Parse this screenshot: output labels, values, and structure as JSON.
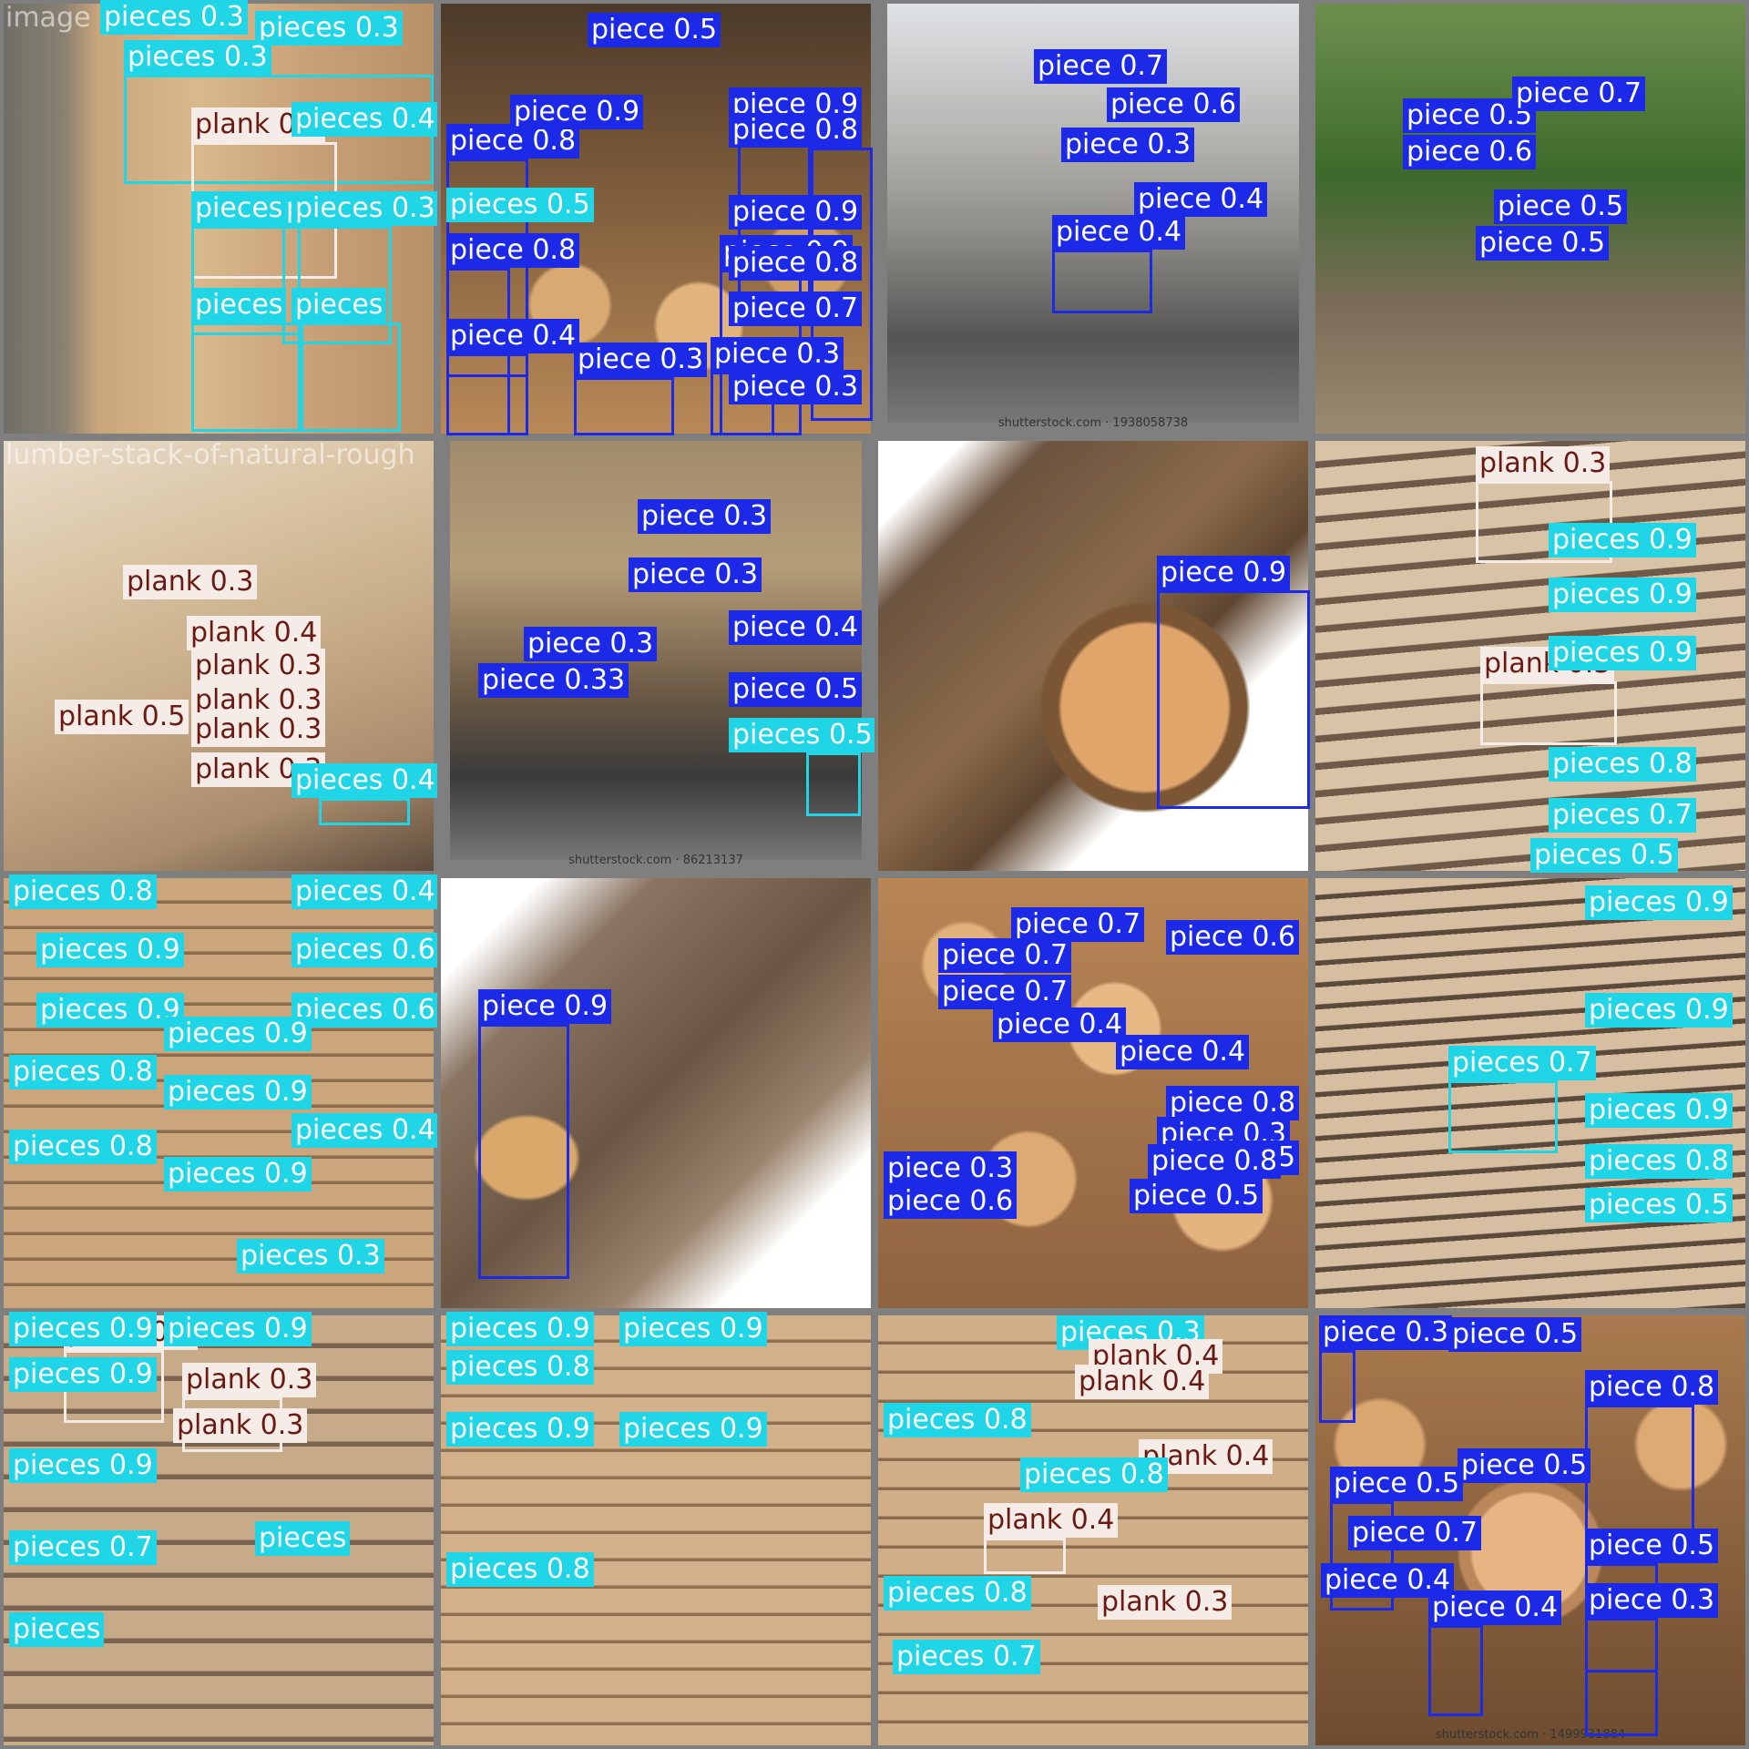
{
  "colors": {
    "pieces": "#1fd5e6",
    "piece": "#1c2ae8",
    "plank": "#f5ece8",
    "plank_text": "#6b1a12",
    "grid_bg": "#7f7f7f"
  },
  "tiles": [
    {
      "filename": "image",
      "credit": "",
      "photo": "lumber-wall",
      "detections": [
        {
          "label": "pieces 0.3",
          "cls": "pieces"
        },
        {
          "label": "pieces 0.3",
          "cls": "pieces"
        },
        {
          "label": "pieces 0.3",
          "cls": "pieces"
        },
        {
          "label": "plank 0.4",
          "cls": "plank"
        },
        {
          "label": "pieces 0.4",
          "cls": "pieces"
        },
        {
          "label": "pieces",
          "cls": "pieces"
        },
        {
          "label": "pieces",
          "cls": "pieces"
        },
        {
          "label": "pieces 0.3",
          "cls": "pieces"
        },
        {
          "label": "pieces",
          "cls": "pieces"
        },
        {
          "label": "pieces",
          "cls": "pieces"
        }
      ]
    },
    {
      "filename": "",
      "credit": "",
      "photo": "log-pile",
      "detections": [
        {
          "label": "piece 0.5",
          "cls": "piece"
        },
        {
          "label": "piece 0.8",
          "cls": "piece"
        },
        {
          "label": "piece 0.9",
          "cls": "piece"
        },
        {
          "label": "piece 0.8",
          "cls": "piece"
        },
        {
          "label": "piece 0.9",
          "cls": "piece"
        },
        {
          "label": "piece 0.8",
          "cls": "piece"
        },
        {
          "label": "piece 0.9",
          "cls": "piece"
        },
        {
          "label": "piece 0.8",
          "cls": "piece"
        },
        {
          "label": "piece 0.9",
          "cls": "piece"
        },
        {
          "label": "piece 0.4",
          "cls": "piece"
        },
        {
          "label": "piece 0.3",
          "cls": "piece"
        },
        {
          "label": "piece 0.3",
          "cls": "piece"
        },
        {
          "label": "piece 0.7",
          "cls": "piece"
        },
        {
          "label": "piece 0.3",
          "cls": "piece"
        },
        {
          "label": "pieces 0.5",
          "cls": "pieces"
        }
      ]
    },
    {
      "filename": "",
      "credit": "shutterstock.com · 1938058738",
      "photo": "truck-road",
      "detections": [
        {
          "label": "piece 0.7",
          "cls": "piece"
        },
        {
          "label": "piece 0.6",
          "cls": "piece"
        },
        {
          "label": "piece 0.3",
          "cls": "piece"
        },
        {
          "label": "piece 0.4",
          "cls": "piece"
        },
        {
          "label": "piece 0.4",
          "cls": "piece"
        }
      ]
    },
    {
      "filename": "",
      "credit": "",
      "photo": "truck-dirt",
      "detections": [
        {
          "label": "piece 0.5",
          "cls": "piece"
        },
        {
          "label": "piece 0.6",
          "cls": "piece"
        },
        {
          "label": "piece 0.5",
          "cls": "piece"
        },
        {
          "label": "piece 0.5",
          "cls": "piece"
        },
        {
          "label": "piece 0.7",
          "cls": "piece"
        }
      ]
    },
    {
      "filename": "lumber-stack-of-natural-rough",
      "credit": "",
      "photo": "stack-planks",
      "detections": [
        {
          "label": "plank 0.3",
          "cls": "plank"
        },
        {
          "label": "plank 0.4",
          "cls": "plank"
        },
        {
          "label": "plank 0.3",
          "cls": "plank"
        },
        {
          "label": "plank 0.5",
          "cls": "plank"
        },
        {
          "label": "plank 0.3",
          "cls": "plank"
        },
        {
          "label": "plank 0.3",
          "cls": "plank"
        },
        {
          "label": "plank 0.3",
          "cls": "plank"
        },
        {
          "label": "pieces 0.4",
          "cls": "pieces"
        }
      ]
    },
    {
      "filename": "",
      "credit": "shutterstock.com · 86213137",
      "photo": "logging-truck",
      "detections": [
        {
          "label": "piece 0.3",
          "cls": "piece"
        },
        {
          "label": "piece 0.3",
          "cls": "piece"
        },
        {
          "label": "piece 0.3",
          "cls": "piece"
        },
        {
          "label": "piece 0.33",
          "cls": "piece"
        },
        {
          "label": "piece 0.4",
          "cls": "piece"
        },
        {
          "label": "piece 0.5",
          "cls": "piece"
        },
        {
          "label": "pieces 0.5",
          "cls": "pieces"
        }
      ]
    },
    {
      "filename": "",
      "credit": "",
      "photo": "single-log",
      "detections": [
        {
          "label": "piece 0.9",
          "cls": "piece"
        }
      ]
    },
    {
      "filename": "",
      "credit": "",
      "photo": "boards-side",
      "detections": [
        {
          "label": "plank 0.3",
          "cls": "plank"
        },
        {
          "label": "plank 0.3",
          "cls": "plank"
        },
        {
          "label": "pieces 0.9",
          "cls": "pieces"
        },
        {
          "label": "pieces 0.9",
          "cls": "pieces"
        },
        {
          "label": "pieces 0.9",
          "cls": "pieces"
        },
        {
          "label": "pieces 0.8",
          "cls": "pieces"
        },
        {
          "label": "pieces 0.7",
          "cls": "pieces"
        },
        {
          "label": "pieces 0.5",
          "cls": "pieces"
        }
      ]
    },
    {
      "filename": "",
      "credit": "",
      "photo": "plank-wall",
      "detections": [
        {
          "label": "pieces 0.8",
          "cls": "pieces"
        },
        {
          "label": "pieces 0.4",
          "cls": "pieces"
        },
        {
          "label": "pieces 0.9",
          "cls": "pieces"
        },
        {
          "label": "pieces 0.6",
          "cls": "pieces"
        },
        {
          "label": "pieces 0.9",
          "cls": "pieces"
        },
        {
          "label": "pieces 0.6",
          "cls": "pieces"
        },
        {
          "label": "pieces 0.9",
          "cls": "pieces"
        },
        {
          "label": "pieces 0.8",
          "cls": "pieces"
        },
        {
          "label": "pieces 0.9",
          "cls": "pieces"
        },
        {
          "label": "pieces 0.4",
          "cls": "pieces"
        },
        {
          "label": "pieces 0.8",
          "cls": "pieces"
        },
        {
          "label": "pieces 0.9",
          "cls": "pieces"
        },
        {
          "label": "pieces 0.3",
          "cls": "pieces"
        }
      ]
    },
    {
      "filename": "",
      "credit": "",
      "photo": "bark-log",
      "detections": [
        {
          "label": "piece 0.9",
          "cls": "piece"
        }
      ]
    },
    {
      "filename": "",
      "credit": "",
      "photo": "log-ends",
      "detections": [
        {
          "label": "piece 0.7",
          "cls": "piece"
        },
        {
          "label": "piece 0.7",
          "cls": "piece"
        },
        {
          "label": "piece 0.7",
          "cls": "piece"
        },
        {
          "label": "piece 0.6",
          "cls": "piece"
        },
        {
          "label": "piece 0.4",
          "cls": "piece"
        },
        {
          "label": "piece 0.4",
          "cls": "piece"
        },
        {
          "label": "piece 0.8",
          "cls": "piece"
        },
        {
          "label": "piece 0.3",
          "cls": "piece"
        },
        {
          "label": "piece 0.5",
          "cls": "piece"
        },
        {
          "label": "piece 0.3",
          "cls": "piece"
        },
        {
          "label": "piece 0.6",
          "cls": "piece"
        },
        {
          "label": "piece 0.5",
          "cls": "piece"
        },
        {
          "label": "piece 0.8",
          "cls": "piece"
        }
      ]
    },
    {
      "filename": "",
      "credit": "",
      "photo": "boards-perspective",
      "detections": [
        {
          "label": "pieces 0.9",
          "cls": "pieces"
        },
        {
          "label": "pieces 0.9",
          "cls": "pieces"
        },
        {
          "label": "pieces 0.7",
          "cls": "pieces"
        },
        {
          "label": "pieces 0.9",
          "cls": "pieces"
        },
        {
          "label": "pieces 0.8",
          "cls": "pieces"
        },
        {
          "label": "pieces 0.5",
          "cls": "pieces"
        }
      ]
    },
    {
      "filename": "",
      "credit": "",
      "photo": "lumber-yard",
      "detections": [
        {
          "label": "plank 0.4",
          "cls": "plank"
        },
        {
          "label": "plank 0.3",
          "cls": "plank"
        },
        {
          "label": "plank 0.3",
          "cls": "plank"
        },
        {
          "label": "pieces 0.9",
          "cls": "pieces"
        },
        {
          "label": "pieces 0.9",
          "cls": "pieces"
        },
        {
          "label": "pieces 0.9",
          "cls": "pieces"
        },
        {
          "label": "pieces 0.9",
          "cls": "pieces"
        },
        {
          "label": "pieces 0.7",
          "cls": "pieces"
        },
        {
          "label": "pieces",
          "cls": "pieces"
        },
        {
          "label": "pieces",
          "cls": "pieces"
        }
      ]
    },
    {
      "filename": "",
      "credit": "",
      "photo": "plank-stack-dense",
      "detections": [
        {
          "label": "pieces 0.9",
          "cls": "pieces"
        },
        {
          "label": "pieces 0.8",
          "cls": "pieces"
        },
        {
          "label": "pieces 0.9",
          "cls": "pieces"
        },
        {
          "label": "pieces 0.9",
          "cls": "pieces"
        },
        {
          "label": "pieces 0.9",
          "cls": "pieces"
        },
        {
          "label": "pieces 0.8",
          "cls": "pieces"
        }
      ]
    },
    {
      "filename": "",
      "credit": "",
      "photo": "planks-mixed",
      "detections": [
        {
          "label": "pieces 0.3",
          "cls": "pieces"
        },
        {
          "label": "plank 0.4",
          "cls": "plank"
        },
        {
          "label": "plank 0.4",
          "cls": "plank"
        },
        {
          "label": "plank 0.4",
          "cls": "plank"
        },
        {
          "label": "plank 0.4",
          "cls": "plank"
        },
        {
          "label": "plank 0.3",
          "cls": "plank"
        },
        {
          "label": "pieces 0.8",
          "cls": "pieces"
        },
        {
          "label": "pieces 0.8",
          "cls": "pieces"
        },
        {
          "label": "pieces 0.8",
          "cls": "pieces"
        },
        {
          "label": "pieces 0.7",
          "cls": "pieces"
        }
      ]
    },
    {
      "filename": "",
      "credit": "shutterstock.com · 1499931884",
      "photo": "log-ends-2",
      "detections": [
        {
          "label": "piece 0.3",
          "cls": "piece"
        },
        {
          "label": "piece 0.5",
          "cls": "piece"
        },
        {
          "label": "piece 0.5",
          "cls": "piece"
        },
        {
          "label": "piece 0.5",
          "cls": "piece"
        },
        {
          "label": "piece 0.7",
          "cls": "piece"
        },
        {
          "label": "piece 0.4",
          "cls": "piece"
        },
        {
          "label": "piece 0.4",
          "cls": "piece"
        },
        {
          "label": "piece 0.8",
          "cls": "piece"
        },
        {
          "label": "piece 0.5",
          "cls": "piece"
        },
        {
          "label": "piece 0.3",
          "cls": "piece"
        }
      ]
    }
  ]
}
